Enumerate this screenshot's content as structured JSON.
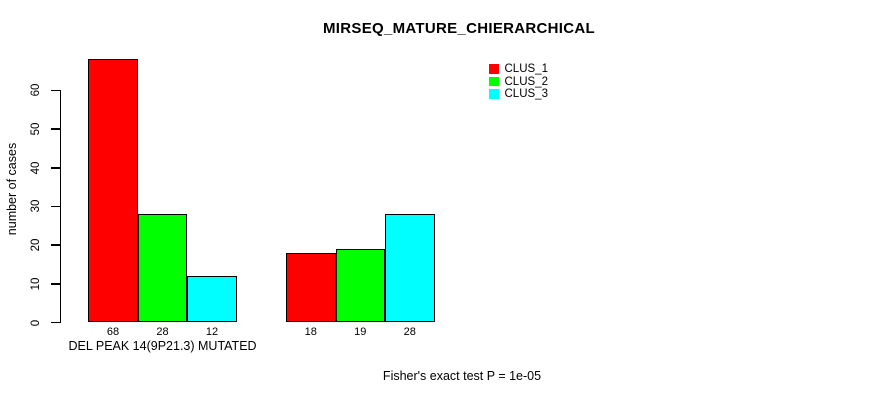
{
  "chart_data": {
    "type": "bar",
    "title": "MIRSEQ_MATURE_CHIERARCHICAL",
    "ylabel": "number of cases",
    "xlabel": "",
    "ylim": [
      0,
      60
    ],
    "yticks": [
      0,
      10,
      20,
      30,
      40,
      50,
      60
    ],
    "grid": false,
    "legend_position": "top-right-inside",
    "series": [
      {
        "name": "CLUS_1",
        "color": "#ff0000"
      },
      {
        "name": "CLUS_2",
        "color": "#00ff00"
      },
      {
        "name": "CLUS_3",
        "color": "#00ffff"
      }
    ],
    "groups": [
      {
        "label": "DEL PEAK 14(9P21.3) MUTATED",
        "values": [
          68,
          28,
          12
        ]
      },
      {
        "label": "",
        "values": [
          18,
          19,
          28
        ]
      }
    ],
    "bar_value_labels_shown": true,
    "footnote": "Fisher's exact test P = 1e-05"
  }
}
